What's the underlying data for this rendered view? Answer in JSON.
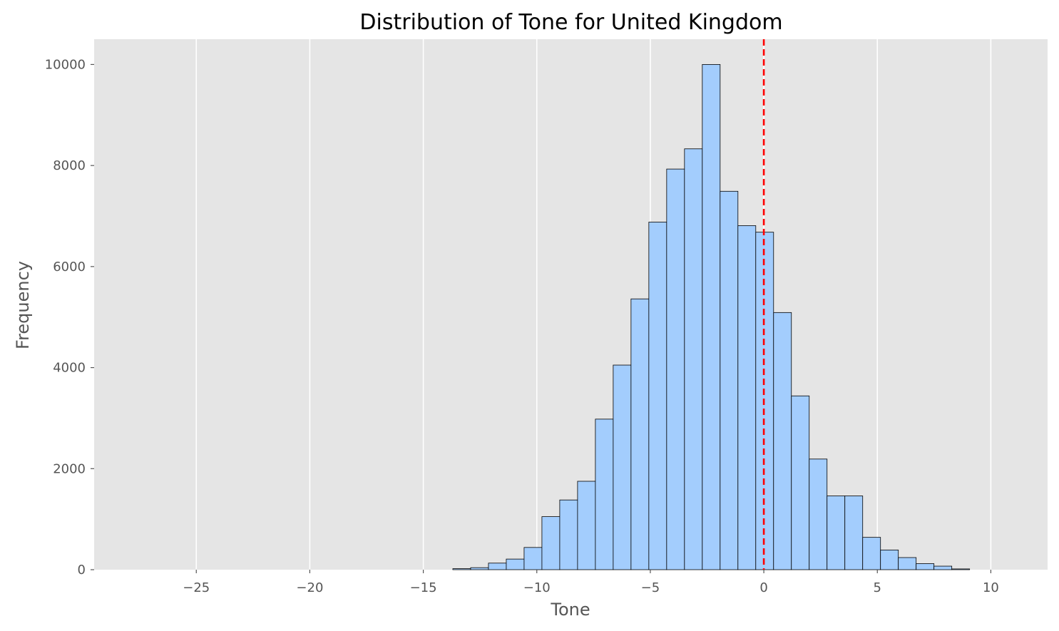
{
  "chart_data": {
    "type": "bar",
    "title": "Distribution of Tone for United Kingdom",
    "xlabel": "Tone",
    "ylabel": "Frequency",
    "xlim": [
      -29.5,
      12.5
    ],
    "ylim": [
      0,
      10500
    ],
    "x_ticks": [
      -25,
      -20,
      -15,
      -10,
      -5,
      0,
      5,
      10
    ],
    "x_tick_labels": [
      "−25",
      "−20",
      "−15",
      "−10",
      "−5",
      "0",
      "5",
      "10"
    ],
    "y_ticks": [
      0,
      2000,
      4000,
      6000,
      8000,
      10000
    ],
    "y_tick_labels": [
      "0",
      "2000",
      "4000",
      "6000",
      "8000",
      "10000"
    ],
    "grid": true,
    "reference_line": {
      "x": 0,
      "color": "#ff0000",
      "style": "dashed"
    },
    "bin_width": 0.785,
    "bins": [
      {
        "x0": -13.7,
        "count": 20
      },
      {
        "x0": -12.915,
        "count": 40
      },
      {
        "x0": -12.13,
        "count": 130
      },
      {
        "x0": -11.345,
        "count": 210
      },
      {
        "x0": -10.56,
        "count": 440
      },
      {
        "x0": -9.775,
        "count": 1050
      },
      {
        "x0": -8.99,
        "count": 1380
      },
      {
        "x0": -8.205,
        "count": 1750
      },
      {
        "x0": -7.42,
        "count": 2980
      },
      {
        "x0": -6.635,
        "count": 4050
      },
      {
        "x0": -5.85,
        "count": 5360
      },
      {
        "x0": -5.065,
        "count": 6880
      },
      {
        "x0": -4.28,
        "count": 7930
      },
      {
        "x0": -3.495,
        "count": 8330
      },
      {
        "x0": -2.71,
        "count": 10000
      },
      {
        "x0": -1.925,
        "count": 7490
      },
      {
        "x0": -1.14,
        "count": 6810
      },
      {
        "x0": -0.355,
        "count": 6680
      },
      {
        "x0": 0.43,
        "count": 5090
      },
      {
        "x0": 1.215,
        "count": 3440
      },
      {
        "x0": 2.0,
        "count": 2190
      },
      {
        "x0": 2.785,
        "count": 1460
      },
      {
        "x0": 3.57,
        "count": 1460
      },
      {
        "x0": 4.355,
        "count": 640
      },
      {
        "x0": 5.14,
        "count": 390
      },
      {
        "x0": 5.925,
        "count": 240
      },
      {
        "x0": 6.71,
        "count": 120
      },
      {
        "x0": 7.495,
        "count": 70
      },
      {
        "x0": 8.28,
        "count": 15
      }
    ],
    "colors": {
      "bar_fill": "#a3cdfd",
      "bar_edge": "#000000",
      "plot_background": "#e5e5e5",
      "grid": "#ffffff"
    }
  }
}
